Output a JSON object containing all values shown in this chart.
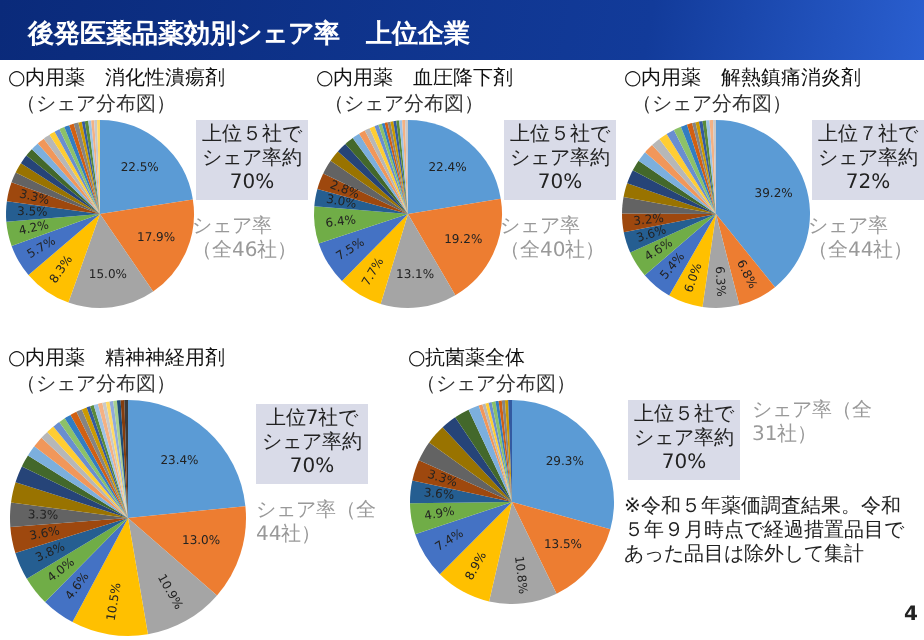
{
  "chart_data": [
    {
      "type": "pie",
      "title": "○内用薬　消化性潰瘍剤",
      "subtitle": "（シェア分布図）",
      "categories": [
        null,
        null,
        null,
        null,
        null,
        null,
        null,
        null,
        null,
        null,
        null,
        null,
        null,
        null,
        null,
        null,
        null,
        null,
        null,
        null,
        null,
        null,
        null,
        null,
        null,
        null,
        null,
        null
      ],
      "values": [
        22.5,
        17.9,
        15.0,
        8.3,
        5.7,
        4.2,
        3.5,
        3.3,
        1.8,
        1.8,
        1.6,
        1.4,
        1.4,
        1.3,
        1.2,
        1.0,
        0.9,
        0.9,
        0.9,
        0.8,
        0.8,
        0.6,
        0.5,
        0.6,
        0.5,
        0.5,
        0.5,
        0.5
      ],
      "value_labels": [
        "22.5%",
        "17.9%",
        "15.0%",
        "8.3%",
        "5.7%",
        "4.2%",
        "3.5%",
        "3.3%",
        null,
        null,
        null,
        null,
        null,
        null,
        null,
        null,
        null,
        null,
        null,
        null,
        null,
        null,
        null,
        null,
        null,
        null,
        null,
        null
      ],
      "colors": [
        "#5b9bd5",
        "#ed7d31",
        "#a5a5a5",
        "#ffc000",
        "#4472c4",
        "#70ad47",
        "#255e91",
        "#9e480e",
        "#636363",
        "#997300",
        "#264478",
        "#43682b",
        "#7cafdd",
        "#f1975a",
        "#b7b7b7",
        "#ffcd33",
        "#698ed0",
        "#8cc168",
        "#327dc2",
        "#d26012",
        "#848484",
        "#cc9a00",
        "#335aa1",
        "#5a8a39",
        "#9dc3e6",
        "#f4b183",
        "#c9c9c9",
        "#ffd966"
      ],
      "annotations": [
        "上位５社でシェア率約70%",
        "シェア率（全46社）",
        "後発医薬品薬効別シェア率　上位企業"
      ]
    },
    {
      "type": "pie",
      "title": "○内用薬　血圧降下剤",
      "subtitle": "（シェア分布図）",
      "categories": [
        null,
        null,
        null,
        null,
        null,
        null,
        null,
        null,
        null,
        null,
        null,
        null,
        null,
        null,
        null,
        null,
        null,
        null,
        null,
        null,
        null,
        null,
        null,
        null,
        null,
        null,
        null
      ],
      "values": [
        22.4,
        19.2,
        13.1,
        7.7,
        7.5,
        6.4,
        3.0,
        2.8,
        2.5,
        2.0,
        1.8,
        1.6,
        1.3,
        1.1,
        0.9,
        0.9,
        0.7,
        0.6,
        0.5,
        0.5,
        0.5,
        0.5,
        0.5,
        0.5,
        0.5,
        0.5,
        0.5
      ],
      "value_labels": [
        "22.4%",
        "19.2%",
        "13.1%",
        "7.7%",
        "7.5%",
        "6.4%",
        "3.0%",
        "2.8%",
        null,
        null,
        null,
        null,
        null,
        null,
        null,
        null,
        null,
        null,
        null,
        null,
        null,
        null,
        null,
        null,
        null,
        null,
        null
      ],
      "colors": [
        "#5b9bd5",
        "#ed7d31",
        "#a5a5a5",
        "#ffc000",
        "#4472c4",
        "#70ad47",
        "#255e91",
        "#9e480e",
        "#636363",
        "#997300",
        "#264478",
        "#43682b",
        "#7cafdd",
        "#f1975a",
        "#b7b7b7",
        "#ffcd33",
        "#698ed0",
        "#8cc168",
        "#327dc2",
        "#d26012",
        "#848484",
        "#cc9a00",
        "#335aa1",
        "#5a8a39",
        "#9dc3e6",
        "#f4b183",
        "#c9c9c9"
      ],
      "annotations": [
        "上位５社でシェア率約70%",
        "シェア率（全40社）"
      ]
    },
    {
      "type": "pie",
      "title": "○内用薬　解熱鎮痛消炎剤",
      "subtitle": "（シェア分布図）",
      "categories": [
        null,
        null,
        null,
        null,
        null,
        null,
        null,
        null,
        null,
        null,
        null,
        null,
        null,
        null,
        null,
        null,
        null,
        null,
        null,
        null,
        null,
        null,
        null,
        null,
        null,
        null,
        null
      ],
      "values": [
        39.2,
        6.8,
        6.3,
        6.0,
        5.4,
        4.6,
        3.6,
        3.2,
        2.8,
        2.4,
        2.4,
        1.9,
        1.8,
        1.7,
        1.6,
        1.5,
        1.4,
        1.3,
        1.1,
        0.9,
        0.6,
        0.6,
        0.6,
        0.6,
        0.6,
        0.6,
        0.5
      ],
      "value_labels": [
        "39.2%",
        "6.8%",
        "6.3%",
        "6.0%",
        "5.4%",
        "4.6%",
        "3.6%",
        "3.2%",
        null,
        null,
        null,
        null,
        null,
        null,
        null,
        null,
        null,
        null,
        null,
        null,
        null,
        null,
        null,
        null,
        null,
        null,
        null
      ],
      "colors": [
        "#5b9bd5",
        "#ed7d31",
        "#a5a5a5",
        "#ffc000",
        "#4472c4",
        "#70ad47",
        "#255e91",
        "#9e480e",
        "#636363",
        "#997300",
        "#264478",
        "#43682b",
        "#7cafdd",
        "#f1975a",
        "#b7b7b7",
        "#ffcd33",
        "#698ed0",
        "#8cc168",
        "#327dc2",
        "#d26012",
        "#848484",
        "#cc9a00",
        "#335aa1",
        "#5a8a39",
        "#9dc3e6",
        "#f4b183",
        "#c9c9c9"
      ],
      "annotations": [
        "上位７社でシェア率約72%",
        "シェア率（全44社）"
      ]
    },
    {
      "type": "pie",
      "title": "○内用薬　精神神経用剤",
      "subtitle": "（シェア分布図）",
      "categories": [
        null,
        null,
        null,
        null,
        null,
        null,
        null,
        null,
        null,
        null,
        null,
        null,
        null,
        null,
        null,
        null,
        null,
        null,
        null,
        null,
        null,
        null,
        null,
        null,
        null,
        null,
        null,
        null,
        null,
        null,
        null,
        null,
        null
      ],
      "values": [
        23.4,
        13.0,
        10.9,
        10.5,
        4.6,
        4.0,
        3.8,
        3.6,
        3.3,
        2.8,
        2.3,
        1.7,
        1.5,
        1.5,
        1.1,
        1.1,
        1.0,
        0.9,
        0.9,
        0.9,
        0.8,
        0.7,
        0.5,
        0.5,
        0.6,
        0.6,
        0.5,
        0.5,
        0.5,
        0.5,
        0.5,
        0.5,
        0.5
      ],
      "value_labels": [
        "23.4%",
        "13.0%",
        "10.9%",
        "10.5%",
        "4.6%",
        "4.0%",
        "3.8%",
        "3.6%",
        "3.3%",
        null,
        null,
        null,
        null,
        null,
        null,
        null,
        null,
        null,
        null,
        null,
        null,
        null,
        null,
        null,
        null,
        null,
        null,
        null,
        null,
        null,
        null,
        null,
        null
      ],
      "colors": [
        "#5b9bd5",
        "#ed7d31",
        "#a5a5a5",
        "#ffc000",
        "#4472c4",
        "#70ad47",
        "#255e91",
        "#9e480e",
        "#636363",
        "#997300",
        "#264478",
        "#43682b",
        "#7cafdd",
        "#f1975a",
        "#b7b7b7",
        "#ffcd33",
        "#698ed0",
        "#8cc168",
        "#327dc2",
        "#d26012",
        "#848484",
        "#cc9a00",
        "#335aa1",
        "#5a8a39",
        "#9dc3e6",
        "#f4b183",
        "#c9c9c9",
        "#ffd966",
        "#8faadc",
        "#a9d18e",
        "#1f4e79",
        "#843c0c",
        "#3a3a3a"
      ],
      "annotations": [
        "上位7社でシェア率約70%",
        "シェア率（全44社）"
      ]
    },
    {
      "type": "pie",
      "title": "○抗菌薬全体",
      "subtitle": "（シェア分布図）",
      "categories": [
        null,
        null,
        null,
        null,
        null,
        null,
        null,
        null,
        null,
        null,
        null,
        null,
        null,
        null,
        null,
        null,
        null,
        null,
        null,
        null,
        null,
        null,
        null
      ],
      "values": [
        29.3,
        13.5,
        10.8,
        8.9,
        7.4,
        4.9,
        3.6,
        3.3,
        3.2,
        3.2,
        2.5,
        2.4,
        1.7,
        0.6,
        0.5,
        0.5,
        0.5,
        0.6,
        0.5,
        0.5,
        0.5,
        0.5,
        0.6
      ],
      "value_labels": [
        "29.3%",
        "13.5%",
        "10.8%",
        "8.9%",
        "7.4%",
        "4.9%",
        "3.6%",
        "3.3%",
        null,
        null,
        null,
        null,
        null,
        null,
        null,
        null,
        null,
        null,
        null,
        null,
        null,
        null,
        null
      ],
      "colors": [
        "#5b9bd5",
        "#ed7d31",
        "#a5a5a5",
        "#ffc000",
        "#4472c4",
        "#70ad47",
        "#255e91",
        "#9e480e",
        "#636363",
        "#997300",
        "#264478",
        "#43682b",
        "#7cafdd",
        "#f1975a",
        "#b7b7b7",
        "#ffcd33",
        "#698ed0",
        "#8cc168",
        "#327dc2",
        "#d26012",
        "#848484",
        "#cc9a00",
        "#335aa1"
      ],
      "annotations": [
        "上位５社でシェア率約70%",
        "シェア率（全31社）",
        "※令和５年薬価調査結果。令和５年９月時点で経過措置品目であった品目は除外して集計",
        "4"
      ]
    }
  ]
}
